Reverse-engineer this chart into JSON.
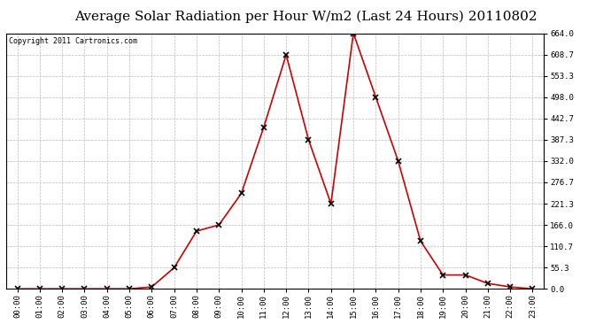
{
  "title": "Average Solar Radiation per Hour W/m2 (Last 24 Hours) 20110802",
  "copyright": "Copyright 2011 Cartronics.com",
  "hours": [
    "00:00",
    "01:00",
    "02:00",
    "03:00",
    "04:00",
    "05:00",
    "06:00",
    "07:00",
    "08:00",
    "09:00",
    "10:00",
    "11:00",
    "12:00",
    "13:00",
    "14:00",
    "15:00",
    "16:00",
    "17:00",
    "18:00",
    "19:00",
    "20:00",
    "21:00",
    "22:00",
    "23:00"
  ],
  "values": [
    0,
    0,
    0,
    0,
    0,
    0,
    5,
    55,
    150,
    166,
    248,
    420,
    608,
    387,
    221,
    664,
    498,
    332,
    124,
    36,
    36,
    14,
    5,
    0
  ],
  "line_color": "#cc0000",
  "marker": "x",
  "marker_color": "#000000",
  "bg_color": "#ffffff",
  "grid_color": "#bbbbbb",
  "ylim": [
    0,
    664
  ],
  "yticks": [
    0.0,
    55.3,
    110.7,
    166.0,
    221.3,
    276.7,
    332.0,
    387.3,
    442.7,
    498.0,
    553.3,
    608.7,
    664.0
  ],
  "ytick_labels": [
    "0.0",
    "55.3",
    "110.7",
    "166.0",
    "221.3",
    "276.7",
    "332.0",
    "387.3",
    "442.7",
    "498.0",
    "553.3",
    "608.7",
    "664.0"
  ],
  "title_fontsize": 11,
  "copyright_fontsize": 6,
  "xtick_fontsize": 6.5,
  "ytick_fontsize": 6.5
}
